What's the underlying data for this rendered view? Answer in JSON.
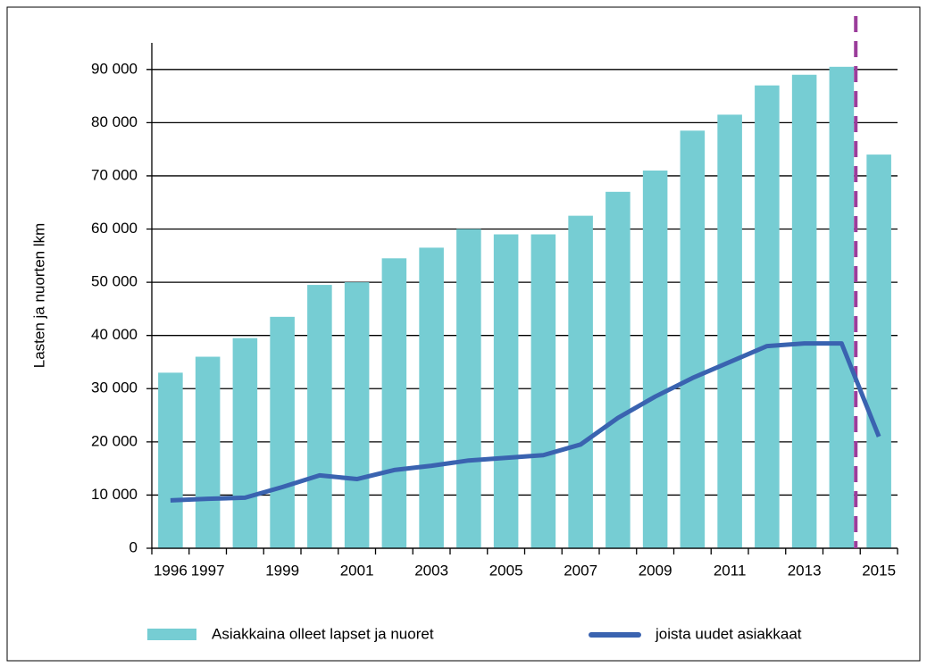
{
  "chart_data": {
    "type": "bar",
    "y_label": "Lasten ja nuorten lkm",
    "categories": [
      "1996",
      "1997",
      null,
      "1999",
      null,
      "2001",
      null,
      "2003",
      null,
      "2005",
      null,
      "2007",
      null,
      "2009",
      null,
      "2011",
      null,
      "2013",
      null,
      "2015"
    ],
    "series": [
      {
        "name": "Asiakkaina olleet lapset ja nuoret",
        "type": "bar",
        "color": "#76cdd3",
        "values": [
          33000,
          36000,
          39500,
          43500,
          49500,
          50000,
          54500,
          56500,
          60000,
          59000,
          59000,
          62500,
          67000,
          71000,
          78500,
          81500,
          87000,
          89000,
          90500,
          74000
        ]
      },
      {
        "name": "joista uudet asiakkaat",
        "type": "line",
        "color": "#3a63b0",
        "values": [
          9000,
          9300,
          9500,
          11500,
          13700,
          13000,
          14700,
          15500,
          16500,
          17000,
          17500,
          19500,
          24500,
          28500,
          32000,
          35000,
          38000,
          38500,
          38500,
          21000
        ]
      }
    ],
    "ylim": [
      0,
      95000
    ],
    "yticks": [
      0,
      {
        "value": 10000,
        "label": "10 000"
      },
      {
        "value": 20000,
        "label": "20 000"
      },
      {
        "value": 30000,
        "label": "30 000"
      },
      {
        "value": 40000,
        "label": "40 000"
      },
      {
        "value": 50000,
        "label": "50 000"
      },
      {
        "value": 60000,
        "label": "60 000"
      },
      {
        "value": 70000,
        "label": "70 000"
      },
      {
        "value": 80000,
        "label": "80 000"
      },
      {
        "value": 90000,
        "label": "90 000"
      }
    ],
    "grid": true
  }
}
